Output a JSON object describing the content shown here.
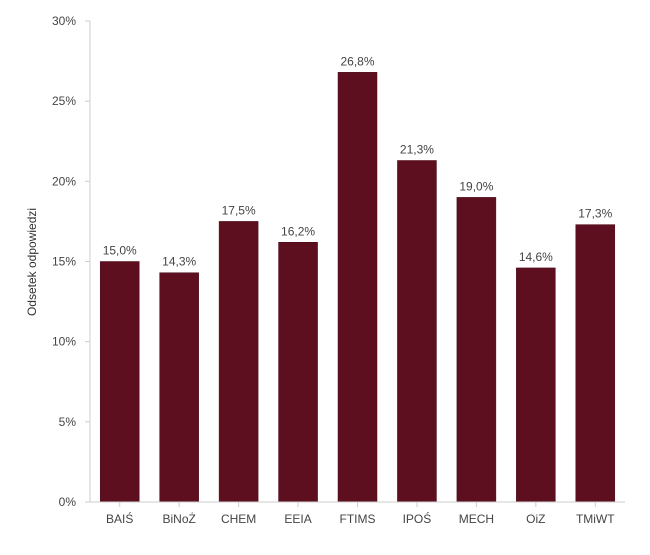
{
  "chart_data": {
    "type": "bar",
    "categories": [
      "BAIŚ",
      "BiNoŻ",
      "CHEM",
      "EEIA",
      "FTIMS",
      "IPOŚ",
      "MECH",
      "OiZ",
      "TMiWT"
    ],
    "values": [
      15.0,
      14.3,
      17.5,
      16.2,
      26.8,
      21.3,
      19.0,
      14.6,
      17.3
    ],
    "value_labels": [
      "15,0%",
      "14,3%",
      "17,5%",
      "16,2%",
      "26,8%",
      "21,3%",
      "19,0%",
      "14,6%",
      "17,3%"
    ],
    "title": "",
    "xlabel": "",
    "ylabel": "Odsetek odpowiedzi",
    "ylim": [
      0,
      30
    ],
    "yticks": [
      0,
      5,
      10,
      15,
      20,
      25,
      30
    ],
    "ytick_labels": [
      "0%",
      "5%",
      "10%",
      "15%",
      "20%",
      "25%",
      "30%"
    ],
    "grid": false,
    "bar_color": "#5e0f1f"
  }
}
